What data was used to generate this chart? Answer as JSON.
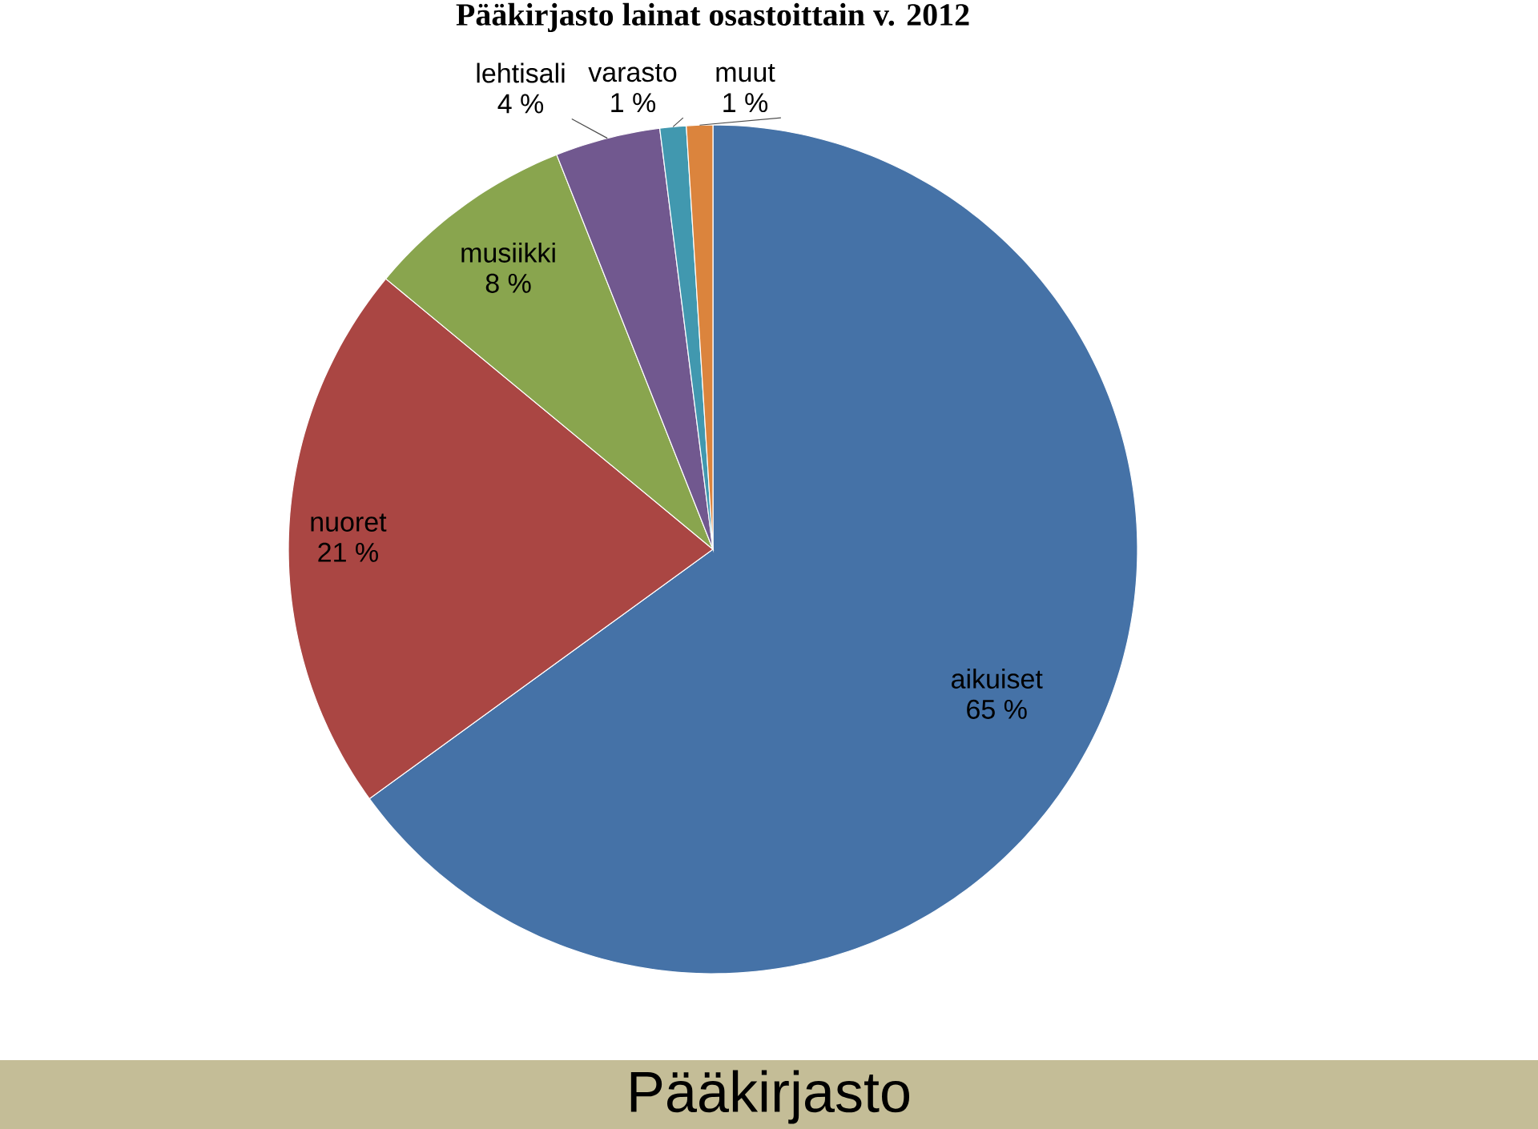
{
  "chart_data": {
    "type": "pie",
    "title": "Pääkirjasto lainat osastoittain v. 2012",
    "categories": [
      "aikuiset",
      "nuoret",
      "musiikki",
      "lehtisali",
      "varasto",
      "muut"
    ],
    "values": [
      65,
      21,
      8,
      4,
      1,
      1
    ],
    "value_labels": [
      "65 %",
      "21 %",
      "8 %",
      "4 %",
      "1 %",
      "1 %"
    ],
    "colors": [
      "#4572a7",
      "#aa4643",
      "#89a54e",
      "#71588f",
      "#4198af",
      "#db843d"
    ],
    "annotations": [
      "Pääkirjasto"
    ]
  }
}
